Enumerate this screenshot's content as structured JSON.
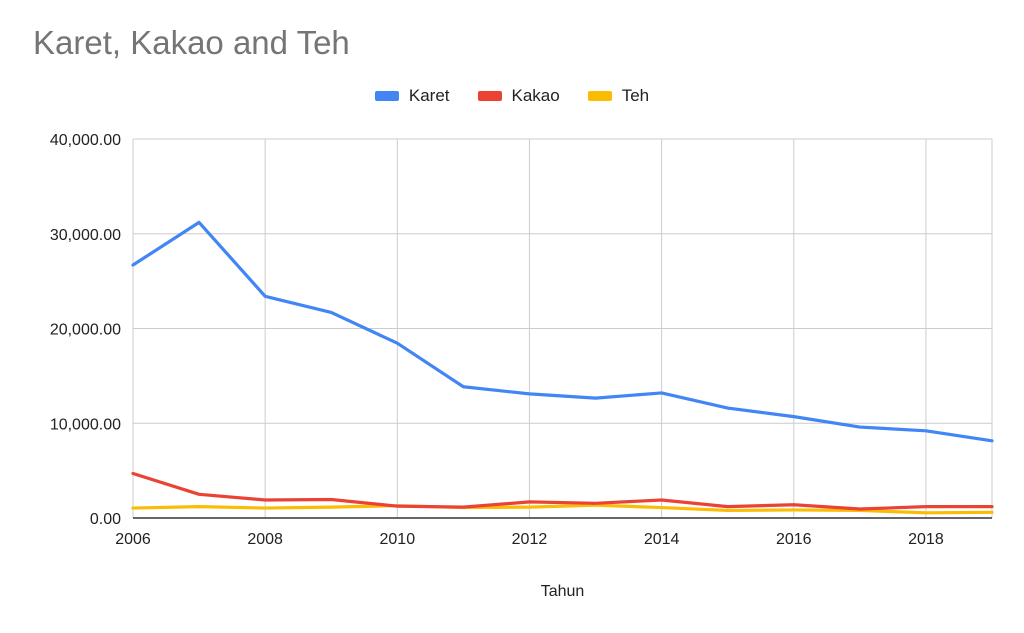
{
  "chart_data": {
    "type": "line",
    "title": "Karet, Kakao and Teh",
    "xlabel": "Tahun",
    "ylabel": "",
    "x": [
      2006,
      2007,
      2008,
      2009,
      2010,
      2011,
      2012,
      2013,
      2014,
      2015,
      2016,
      2017,
      2018,
      2019
    ],
    "series": [
      {
        "name": "Karet",
        "color": "#4285f4",
        "values": [
          26700,
          31200,
          23400,
          21700,
          18450,
          13850,
          13100,
          12650,
          13200,
          11600,
          10700,
          9600,
          9200,
          8150
        ]
      },
      {
        "name": "Kakao",
        "color": "#ea4335",
        "values": [
          4700,
          2500,
          1900,
          1950,
          1250,
          1150,
          1700,
          1550,
          1900,
          1200,
          1400,
          950,
          1200,
          1200
        ]
      },
      {
        "name": "Teh",
        "color": "#fbbc04",
        "values": [
          1050,
          1200,
          1050,
          1150,
          1300,
          1100,
          1150,
          1350,
          1100,
          800,
          850,
          800,
          550,
          600
        ]
      }
    ],
    "ylim": [
      0,
      40000
    ],
    "yticks": [
      "0.00",
      "10,000.00",
      "20,000.00",
      "30,000.00",
      "40,000.00"
    ],
    "xticks": [
      "2006",
      "2008",
      "2010",
      "2012",
      "2014",
      "2016",
      "2018"
    ],
    "grid": true,
    "legend_position": "top"
  }
}
